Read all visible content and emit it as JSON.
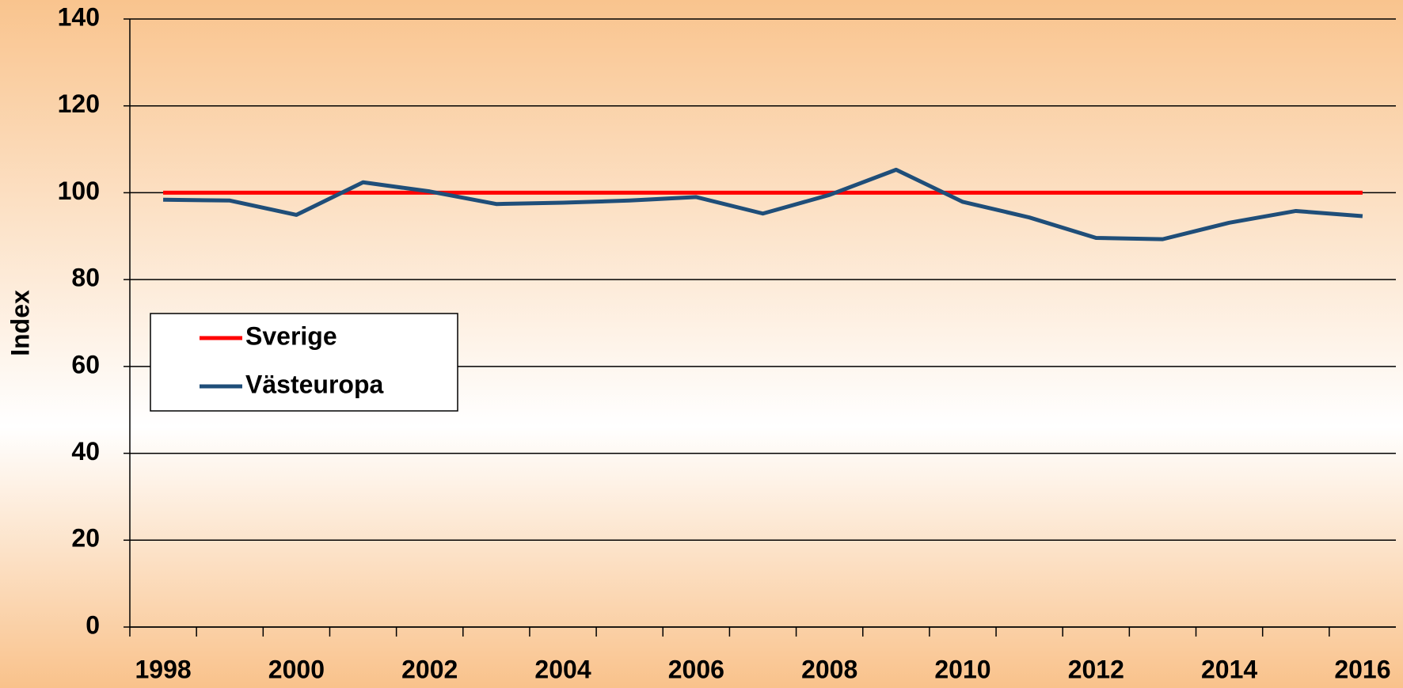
{
  "chart_data": {
    "type": "line",
    "y_label": "Index",
    "categories": [
      "1998",
      null,
      "2000",
      null,
      "2002",
      null,
      "2004",
      null,
      "2006",
      null,
      "2008",
      null,
      "2010",
      null,
      "2012",
      null,
      "2014",
      null,
      "2016"
    ],
    "series": [
      {
        "name": "Sverige",
        "color": "#ff0000",
        "values": [
          100,
          100,
          100,
          100,
          100,
          100,
          100,
          100,
          100,
          100,
          100,
          100,
          100,
          100,
          100,
          100,
          100,
          100,
          100
        ]
      },
      {
        "name": "Västeuropa",
        "color": "#1f4e79",
        "values": [
          98.4,
          98.2,
          94.9,
          102.4,
          100.3,
          97.4,
          97.7,
          98.2,
          99.0,
          95.2,
          99.5,
          105.3,
          97.9,
          94.3,
          89.6,
          89.3,
          93.1,
          95.8,
          94.6
        ]
      }
    ],
    "ylim": [
      0,
      140
    ],
    "yticks": [
      0,
      20,
      40,
      60,
      80,
      100,
      120,
      140
    ],
    "grid": true,
    "legend": "left"
  }
}
